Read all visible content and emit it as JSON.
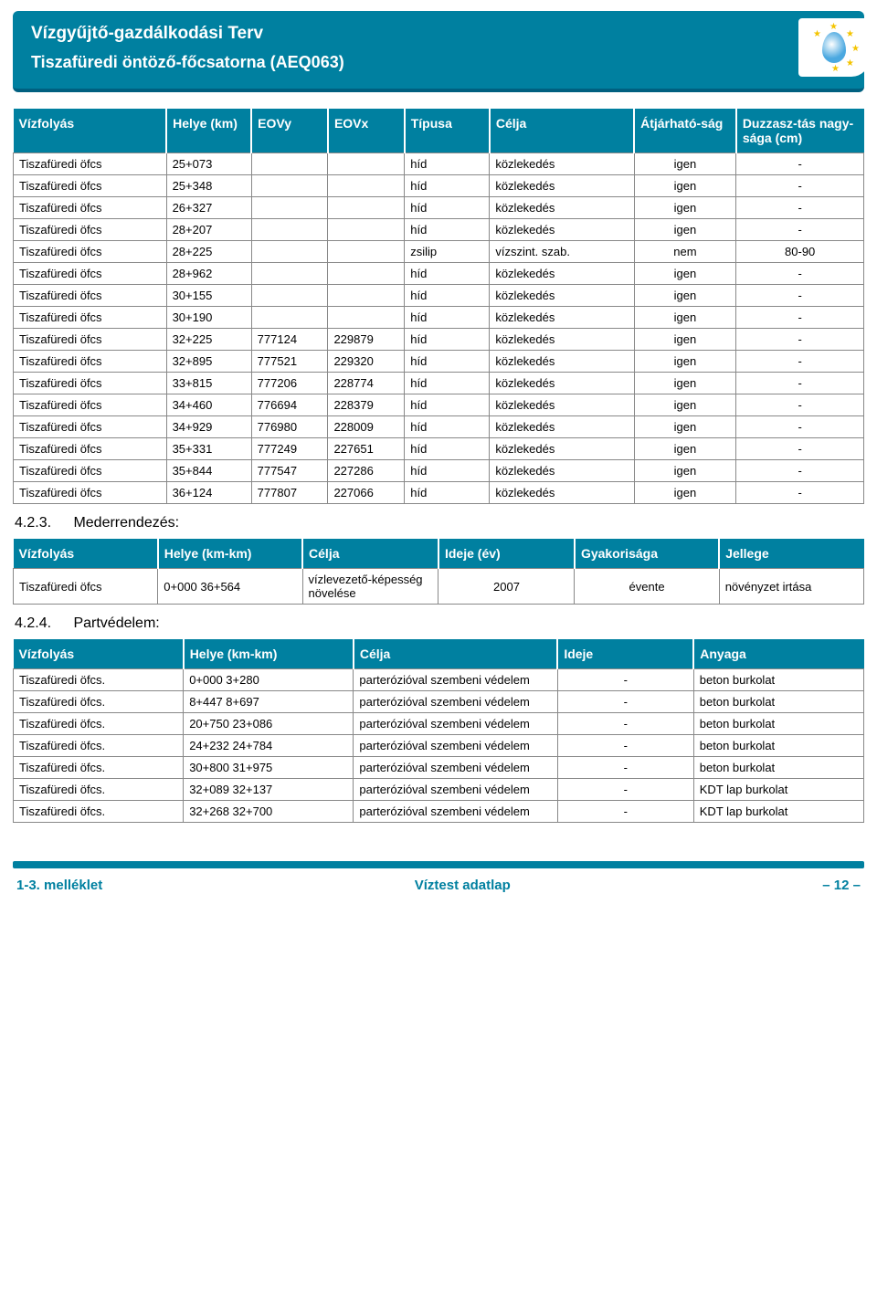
{
  "header": {
    "title": "Vízgyűjtő-gazdálkodási Terv",
    "subtitle": "Tiszafüredi öntöző-főcsatorna (AEQ063)"
  },
  "table1": {
    "columns": [
      "Vízfolyás",
      "Helye (km)",
      "EOVy",
      "EOVx",
      "Típusa",
      "Célja",
      "Átjárható-ság",
      "Duzzasz-tás nagy-sága (cm)"
    ],
    "col_widths": [
      "18%",
      "10%",
      "9%",
      "9%",
      "10%",
      "17%",
      "12%",
      "15%"
    ],
    "header_bg": "#0080a0",
    "header_fg": "#ffffff",
    "rows": [
      [
        "Tiszafüredi öfcs",
        "25+073",
        "",
        "",
        "híd",
        "közlekedés",
        "igen",
        "-"
      ],
      [
        "Tiszafüredi öfcs",
        "25+348",
        "",
        "",
        "híd",
        "közlekedés",
        "igen",
        "-"
      ],
      [
        "Tiszafüredi öfcs",
        "26+327",
        "",
        "",
        "híd",
        "közlekedés",
        "igen",
        "-"
      ],
      [
        "Tiszafüredi öfcs",
        "28+207",
        "",
        "",
        "híd",
        "közlekedés",
        "igen",
        "-"
      ],
      [
        "Tiszafüredi öfcs",
        "28+225",
        "",
        "",
        "zsilip",
        "vízszint. szab.",
        "nem",
        "80-90"
      ],
      [
        "Tiszafüredi öfcs",
        "28+962",
        "",
        "",
        "híd",
        "közlekedés",
        "igen",
        "-"
      ],
      [
        "Tiszafüredi öfcs",
        "30+155",
        "",
        "",
        "híd",
        "közlekedés",
        "igen",
        "-"
      ],
      [
        "Tiszafüredi öfcs",
        "30+190",
        "",
        "",
        "híd",
        "közlekedés",
        "igen",
        "-"
      ],
      [
        "Tiszafüredi öfcs",
        "32+225",
        "777124",
        "229879",
        "híd",
        "közlekedés",
        "igen",
        "-"
      ],
      [
        "Tiszafüredi öfcs",
        "32+895",
        "777521",
        "229320",
        "híd",
        "közlekedés",
        "igen",
        "-"
      ],
      [
        "Tiszafüredi öfcs",
        "33+815",
        "777206",
        "228774",
        "híd",
        "közlekedés",
        "igen",
        "-"
      ],
      [
        "Tiszafüredi öfcs",
        "34+460",
        "776694",
        "228379",
        "híd",
        "közlekedés",
        "igen",
        "-"
      ],
      [
        "Tiszafüredi öfcs",
        "34+929",
        "776980",
        "228009",
        "híd",
        "közlekedés",
        "igen",
        "-"
      ],
      [
        "Tiszafüredi öfcs",
        "35+331",
        "777249",
        "227651",
        "híd",
        "közlekedés",
        "igen",
        "-"
      ],
      [
        "Tiszafüredi öfcs",
        "35+844",
        "777547",
        "227286",
        "híd",
        "közlekedés",
        "igen",
        "-"
      ],
      [
        "Tiszafüredi öfcs",
        "36+124",
        "777807",
        "227066",
        "híd",
        "közlekedés",
        "igen",
        "-"
      ]
    ]
  },
  "section423": {
    "num": "4.2.3.",
    "title": "Mederrendezés:"
  },
  "table2": {
    "columns": [
      "Vízfolyás",
      "Helye (km-km)",
      "Célja",
      "Ideje (év)",
      "Gyakorisága",
      "Jellege"
    ],
    "col_widths": [
      "17%",
      "17%",
      "16%",
      "16%",
      "17%",
      "17%"
    ],
    "rows": [
      [
        "Tiszafüredi öfcs",
        "0+000  36+564",
        "vízlevezető-képesség növelése",
        "2007",
        "évente",
        "növényzet irtása"
      ]
    ]
  },
  "section424": {
    "num": "4.2.4.",
    "title": "Partvédelem:"
  },
  "table3": {
    "columns": [
      "Vízfolyás",
      "Helye (km-km)",
      "Célja",
      "Ideje",
      "Anyaga"
    ],
    "col_widths": [
      "20%",
      "20%",
      "24%",
      "16%",
      "20%"
    ],
    "rows": [
      [
        "Tiszafüredi öfcs.",
        "0+000  3+280",
        "parterózióval szembeni védelem",
        "-",
        "beton burkolat"
      ],
      [
        "Tiszafüredi öfcs.",
        "8+447  8+697",
        "parterózióval szembeni védelem",
        "-",
        "beton burkolat"
      ],
      [
        "Tiszafüredi öfcs.",
        "20+750  23+086",
        "parterózióval szembeni védelem",
        "-",
        "beton burkolat"
      ],
      [
        "Tiszafüredi öfcs.",
        "24+232  24+784",
        "parterózióval szembeni védelem",
        "-",
        "beton burkolat"
      ],
      [
        "Tiszafüredi öfcs.",
        "30+800  31+975",
        "parterózióval szembeni védelem",
        "-",
        "beton burkolat"
      ],
      [
        "Tiszafüredi öfcs.",
        "32+089  32+137",
        "parterózióval szembeni védelem",
        "-",
        "KDT lap burkolat"
      ],
      [
        "Tiszafüredi öfcs.",
        "32+268  32+700",
        "parterózióval szembeni védelem",
        "-",
        "KDT lap burkolat"
      ]
    ]
  },
  "footer": {
    "left": "1-3. melléklet",
    "center": "Víztest adatlap",
    "right": "– 12 –"
  },
  "colors": {
    "brand": "#0080a0",
    "brand_dark": "#006080",
    "border": "#888888",
    "white": "#ffffff"
  }
}
